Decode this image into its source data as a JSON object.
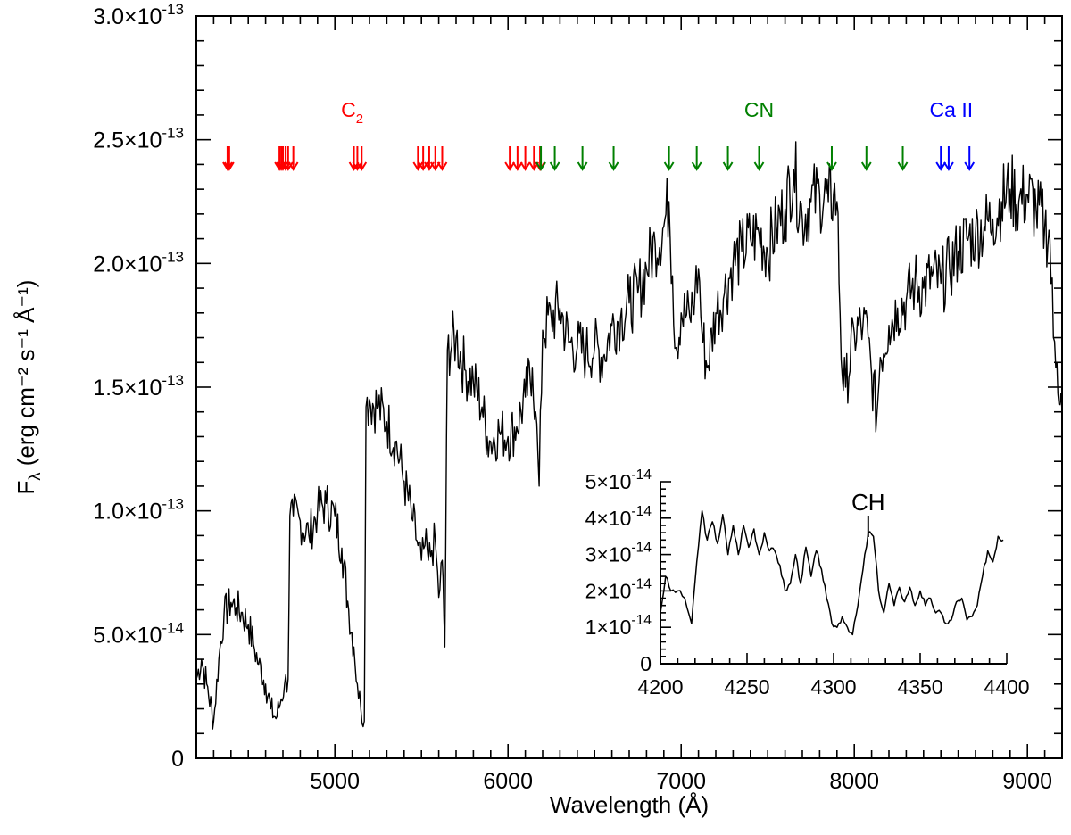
{
  "chart_data": [
    {
      "type": "line",
      "title": "",
      "xlabel": "Wavelength (Å)",
      "ylabel": {
        "main": "F",
        "sub": "λ",
        "units": "(erg cm⁻² s⁻¹ Å⁻¹)"
      },
      "xlim": [
        4200,
        9200
      ],
      "ylim": [
        0,
        3e-13
      ],
      "x_ticks": [
        5000,
        6000,
        7000,
        8000,
        9000
      ],
      "x_tick_labels": [
        "5000",
        "6000",
        "7000",
        "8000",
        "9000"
      ],
      "y_ticks": [
        0,
        5e-14,
        1e-13,
        1.5e-13,
        2e-13,
        2.5e-13,
        3e-13
      ],
      "y_tick_labels": [
        {
          "m": "0",
          "e": ""
        },
        {
          "m": "5.0×10",
          "e": "-14"
        },
        {
          "m": "1.0×10",
          "e": "-13"
        },
        {
          "m": "1.5×10",
          "e": "-13"
        },
        {
          "m": "2.0×10",
          "e": "-13"
        },
        {
          "m": "2.5×10",
          "e": "-13"
        },
        {
          "m": "3.0×10",
          "e": "-13"
        }
      ],
      "grid": false,
      "series": [
        {
          "color": "#000000",
          "x": [
            4200,
            4230,
            4260,
            4300,
            4330,
            4360,
            4400,
            4430,
            4460,
            4500,
            4530,
            4560,
            4600,
            4630,
            4660,
            4690,
            4710,
            4730,
            4740,
            4760,
            4800,
            4850,
            4900,
            4950,
            5000,
            5040,
            5080,
            5110,
            5130,
            5150,
            5170,
            5180,
            5200,
            5250,
            5300,
            5350,
            5400,
            5450,
            5480,
            5500,
            5520,
            5540,
            5560,
            5580,
            5600,
            5620,
            5635,
            5650,
            5700,
            5750,
            5800,
            5850,
            5880,
            5900,
            5950,
            6000,
            6050,
            6100,
            6140,
            6160,
            6180,
            6200,
            6250,
            6300,
            6350,
            6400,
            6450,
            6500,
            6550,
            6600,
            6650,
            6700,
            6750,
            6800,
            6850,
            6900,
            6930,
            6950,
            6970,
            7000,
            7050,
            7080,
            7100,
            7120,
            7150,
            7200,
            7250,
            7300,
            7350,
            7400,
            7450,
            7500,
            7550,
            7600,
            7650,
            7700,
            7750,
            7800,
            7850,
            7880,
            7900,
            7930,
            7950,
            8000,
            8050,
            8080,
            8100,
            8130,
            8150,
            8200,
            8250,
            8300,
            8350,
            8400,
            8450,
            8500,
            8550,
            8600,
            8650,
            8700,
            8750,
            8800,
            8850,
            8900,
            8950,
            9000,
            9050,
            9100,
            9130,
            9150,
            9170,
            9200
          ],
          "y": [
            3.2e-14,
            4e-14,
            3e-14,
            1.5e-14,
            4e-14,
            5.8e-14,
            6.3e-14,
            6.1e-14,
            5.9e-14,
            5.4e-14,
            4.6e-14,
            3.8e-14,
            3e-14,
            2e-14,
            1.6e-14,
            2.4e-14,
            3e-14,
            3.2e-14,
            9.8e-14,
            9.8e-14,
            9.6e-14,
            9e-14,
            1e-13,
            1.03e-13,
            9.8e-14,
            8.5e-14,
            6e-14,
            4.5e-14,
            3e-14,
            2e-14,
            1.5e-14,
            1.42e-13,
            1.45e-13,
            1.42e-13,
            1.36e-13,
            1.28e-13,
            1.12e-13,
            9.6e-14,
            8.6e-14,
            8e-14,
            8.6e-14,
            8e-14,
            8.4e-14,
            8.8e-14,
            6.5e-14,
            8e-14,
            4.5e-14,
            1.65e-13,
            1.7e-13,
            1.57e-13,
            1.52e-13,
            1.42e-13,
            1.3e-13,
            1.28e-13,
            1.32e-13,
            1.3e-13,
            1.34e-13,
            1.46e-13,
            1.58e-13,
            1.4e-13,
            1.1e-13,
            1.73e-13,
            1.78e-13,
            1.82e-13,
            1.68e-13,
            1.66e-13,
            1.64e-13,
            1.66e-13,
            1.62e-13,
            1.75e-13,
            1.78e-13,
            1.84e-13,
            1.88e-13,
            1.98e-13,
            2.08e-13,
            2.15e-13,
            2.25e-13,
            1.95e-13,
            1.66e-13,
            1.8e-13,
            1.78e-13,
            1.88e-13,
            1.98e-13,
            1.72e-13,
            1.58e-13,
            1.8e-13,
            1.88e-13,
            2e-13,
            2.05e-13,
            2.1e-13,
            2.12e-13,
            2.05e-13,
            2.15e-13,
            2.22e-13,
            2.38e-13,
            2.18e-13,
            2.25e-13,
            2.28e-13,
            2.25e-13,
            2.28e-13,
            2.25e-13,
            1.55e-13,
            1.5e-13,
            1.72e-13,
            1.75e-13,
            1.7e-13,
            1.55e-13,
            1.38e-13,
            1.62e-13,
            1.75e-13,
            1.82e-13,
            1.85e-13,
            1.92e-13,
            1.9e-13,
            1.95e-13,
            1.92e-13,
            1.98e-13,
            2.05e-13,
            2.1e-13,
            2.12e-13,
            2.15e-13,
            2.18e-13,
            2.25e-13,
            2.3e-13,
            2.25e-13,
            2.28e-13,
            2.22e-13,
            2.15e-13,
            2.1e-13,
            1.7e-13,
            1.6e-13,
            1.4e-13
          ]
        }
      ],
      "annotations": [
        {
          "label": "C",
          "sub": "2",
          "color": "#ff0000",
          "wavelength": 5100,
          "arrows": [
            4380,
            4390,
            4680,
            4690,
            4700,
            4715,
            4730,
            4760,
            5110,
            5130,
            5155,
            5480,
            5510,
            5545,
            5580,
            5620,
            6010,
            6055,
            6100,
            6150,
            6185
          ]
        },
        {
          "label": "CN",
          "color": "#008000",
          "wavelength": 7450,
          "arrows": [
            6190,
            6270,
            6430,
            6610,
            6930,
            7090,
            7270,
            7450,
            7870,
            8070,
            8280
          ]
        },
        {
          "label": "Ca II",
          "color": "#0000ff",
          "wavelength": 8560,
          "arrows": [
            8500,
            8545,
            8665
          ]
        }
      ]
    },
    {
      "type": "line",
      "title": "",
      "xlim": [
        4200,
        4400
      ],
      "ylim": [
        0,
        5e-14
      ],
      "x_ticks": [
        4200,
        4250,
        4300,
        4350,
        4400
      ],
      "x_tick_labels": [
        "4200",
        "4250",
        "4300",
        "4350",
        "4400"
      ],
      "y_ticks": [
        0,
        1e-14,
        2e-14,
        3e-14,
        4e-14,
        5e-14
      ],
      "y_tick_labels": [
        {
          "m": "0",
          "e": ""
        },
        {
          "m": "1×10",
          "e": "-14"
        },
        {
          "m": "2×10",
          "e": "-14"
        },
        {
          "m": "3×10",
          "e": "-14"
        },
        {
          "m": "4×10",
          "e": "-14"
        },
        {
          "m": "5×10",
          "e": "-14"
        }
      ],
      "series": [
        {
          "color": "#000000",
          "x": [
            4200,
            4203,
            4206,
            4210,
            4214,
            4218,
            4221,
            4224,
            4227,
            4230,
            4233,
            4236,
            4239,
            4242,
            4245,
            4248,
            4251,
            4254,
            4257,
            4260,
            4263,
            4266,
            4269,
            4272,
            4275,
            4278,
            4281,
            4284,
            4287,
            4290,
            4293,
            4296,
            4299,
            4302,
            4305,
            4308,
            4311,
            4314,
            4317,
            4320,
            4323,
            4326,
            4329,
            4332,
            4335,
            4338,
            4341,
            4344,
            4347,
            4350,
            4353,
            4356,
            4359,
            4362,
            4365,
            4368,
            4371,
            4374,
            4377,
            4380,
            4383,
            4386,
            4389,
            4392,
            4395,
            4398
          ],
          "y": [
            1.4e-14,
            2.4e-14,
            2e-14,
            2e-14,
            1.8e-14,
            1.1e-14,
            2.8e-14,
            4.2e-14,
            3.4e-14,
            3.9e-14,
            3.3e-14,
            4.1e-14,
            3e-14,
            3.8e-14,
            3e-14,
            3.8e-14,
            3.2e-14,
            3.7e-14,
            3e-14,
            3.6e-14,
            3.1e-14,
            3.1e-14,
            2.7e-14,
            2e-14,
            2.2e-14,
            3e-14,
            2.2e-14,
            3.2e-14,
            2.4e-14,
            3.1e-14,
            2.6e-14,
            1.8e-14,
            1.1e-14,
            1e-14,
            1.3e-14,
            1e-14,
            8e-15,
            1.6e-14,
            2.6e-14,
            3.6e-14,
            3.5e-14,
            2e-14,
            1.4e-14,
            2.2e-14,
            1.6e-14,
            2.1e-14,
            1.7e-14,
            2.1e-14,
            1.6e-14,
            2e-14,
            1.6e-14,
            1.8e-14,
            1.4e-14,
            1.4e-14,
            1.1e-14,
            1.2e-14,
            1.7e-14,
            1.8e-14,
            1.2e-14,
            1.3e-14,
            1.6e-14,
            2.4e-14,
            3.1e-14,
            2.8e-14,
            3.5e-14,
            3.4e-14
          ]
        }
      ],
      "annotations": [
        {
          "label": "CH",
          "wavelength": 4320,
          "color": "#000000"
        }
      ]
    }
  ]
}
